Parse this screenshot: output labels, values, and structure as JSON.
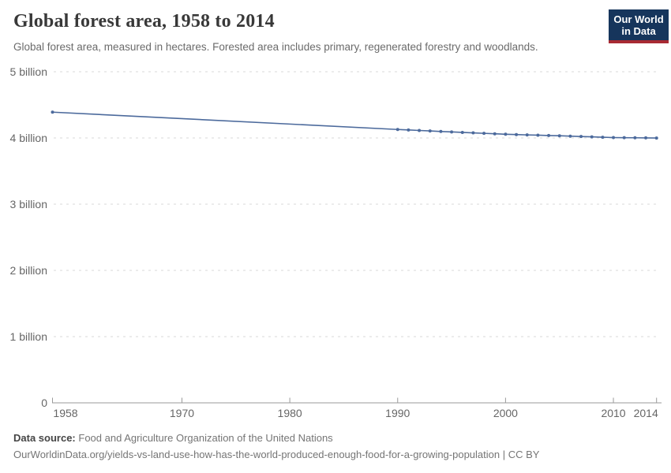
{
  "header": {
    "title": "Global forest area, 1958 to 2014",
    "subtitle": "Global forest area, measured in hectares. Forested area includes primary, regenerated forestry and woodlands.",
    "logo": {
      "line1": "Our World",
      "line2": "in Data",
      "bg_color": "#16355c",
      "accent_color": "#a82a33"
    }
  },
  "chart_data": {
    "type": "line",
    "title": "Global forest area, 1958 to 2014",
    "xlabel": "",
    "ylabel": "",
    "unit": "billion hectares",
    "grid": "horizontal-dashed",
    "legend_position": "none",
    "xlim": [
      1958,
      2014
    ],
    "ylim": [
      0,
      5
    ],
    "x_ticks": [
      {
        "year": 1958,
        "label": "1958"
      },
      {
        "year": 1970,
        "label": "1970"
      },
      {
        "year": 1980,
        "label": "1980"
      },
      {
        "year": 1990,
        "label": "1990"
      },
      {
        "year": 2000,
        "label": "2000"
      },
      {
        "year": 2010,
        "label": "2010"
      },
      {
        "year": 2014,
        "label": "2014"
      }
    ],
    "y_ticks": [
      {
        "value": 0,
        "label": "0"
      },
      {
        "value": 1,
        "label": "1 billion"
      },
      {
        "value": 2,
        "label": "2 billion"
      },
      {
        "value": 3,
        "label": "3 billion"
      },
      {
        "value": 4,
        "label": "4 billion"
      },
      {
        "value": 5,
        "label": "5 billion"
      }
    ],
    "series": [
      {
        "name": "Global forest area",
        "color": "#4c6a9c",
        "x": [
          1958,
          1990,
          1991,
          1992,
          1993,
          1994,
          1995,
          1996,
          1997,
          1998,
          1999,
          2000,
          2001,
          2002,
          2003,
          2004,
          2005,
          2006,
          2007,
          2008,
          2009,
          2010,
          2011,
          2012,
          2013,
          2014
        ],
        "values": [
          4.39,
          4.128,
          4.121,
          4.113,
          4.106,
          4.098,
          4.091,
          4.084,
          4.077,
          4.07,
          4.063,
          4.056,
          4.051,
          4.046,
          4.042,
          4.037,
          4.033,
          4.027,
          4.022,
          4.017,
          4.011,
          4.006,
          4.004,
          4.003,
          4.001,
          3.999
        ]
      }
    ]
  },
  "footer": {
    "datasource_label": "Data source:",
    "datasource_value": "Food and Agriculture Organization of the United Nations",
    "note": "OurWorldinData.org/yields-vs-land-use-how-has-the-world-produced-enough-food-for-a-growing-population | CC BY"
  }
}
